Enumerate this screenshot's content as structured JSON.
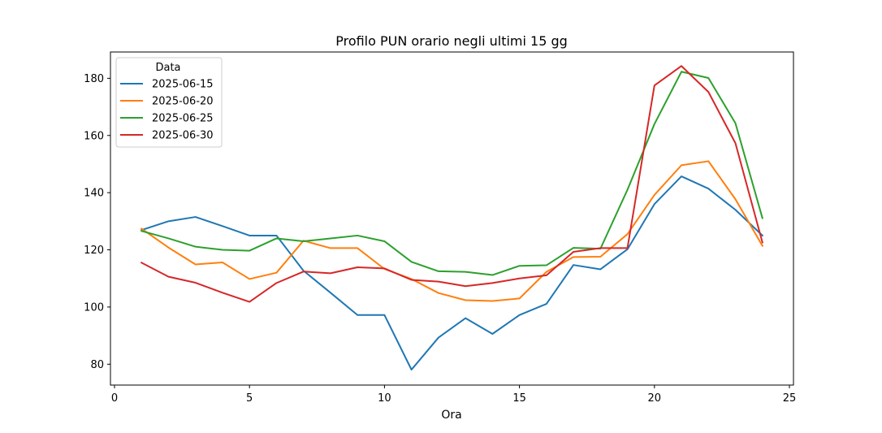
{
  "chart_data": {
    "type": "line",
    "title": "Profilo PUN orario negli ultimi 15 gg",
    "xlabel": "Ora",
    "ylabel": "",
    "xlim": [
      -0.15,
      25.15
    ],
    "ylim": [
      72.7,
      189.2
    ],
    "xticks": [
      0,
      5,
      10,
      15,
      20,
      25
    ],
    "yticks": [
      80,
      100,
      120,
      140,
      160,
      180
    ],
    "grid": false,
    "legend": {
      "title": "Data",
      "placement": "top-left"
    },
    "x": [
      1,
      2,
      3,
      4,
      5,
      6,
      7,
      8,
      9,
      10,
      11,
      12,
      13,
      14,
      15,
      16,
      17,
      18,
      19,
      20,
      21,
      22,
      23,
      24
    ],
    "series": [
      {
        "name": "2025-06-15",
        "color": "#1f77b4",
        "values": [
          126.9,
          130.0,
          131.5,
          128.3,
          125.0,
          125.0,
          112.7,
          105.0,
          97.2,
          97.2,
          78.1,
          89.3,
          96.1,
          90.6,
          97.2,
          101.1,
          114.7,
          113.2,
          120.2,
          136.0,
          145.7,
          141.4,
          134.0,
          125.0
        ]
      },
      {
        "name": "2025-06-20",
        "color": "#ff7f0e",
        "values": [
          127.4,
          120.8,
          114.9,
          115.6,
          109.8,
          112.0,
          123.2,
          120.6,
          120.6,
          113.3,
          109.8,
          104.9,
          102.4,
          102.1,
          103.0,
          112.3,
          117.5,
          117.6,
          125.5,
          139.2,
          149.6,
          151.0,
          137.7,
          121.4
        ]
      },
      {
        "name": "2025-06-25",
        "color": "#2ca02c",
        "values": [
          126.6,
          124.0,
          121.1,
          120.0,
          119.7,
          124.0,
          123.0,
          124.0,
          125.0,
          123.0,
          115.8,
          112.5,
          112.3,
          111.2,
          114.4,
          114.6,
          120.7,
          120.4,
          141.0,
          164.0,
          182.3,
          180.1,
          164.3,
          131.1
        ]
      },
      {
        "name": "2025-06-30",
        "color": "#d62728",
        "values": [
          115.5,
          110.6,
          108.5,
          105.0,
          101.8,
          108.4,
          112.4,
          111.8,
          113.9,
          113.5,
          109.5,
          108.9,
          107.3,
          108.4,
          110.0,
          111.1,
          119.3,
          120.6,
          120.6,
          177.5,
          184.3,
          175.2,
          157.3,
          122.6
        ]
      }
    ]
  }
}
